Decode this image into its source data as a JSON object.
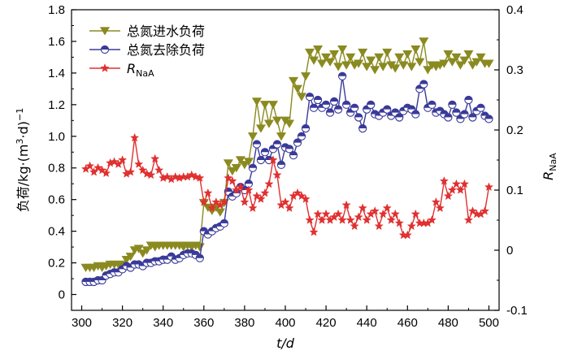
{
  "chart_data": {
    "type": "line",
    "xlabel": "t/d",
    "ylabel_left": "负荷/kg·(m3·d)−1",
    "ylabel_right": "RNaA",
    "xlim": [
      295,
      505
    ],
    "ylim_left": [
      -0.1,
      1.8
    ],
    "ylim_right": [
      -0.1,
      0.4
    ],
    "x_ticks": [
      300,
      320,
      340,
      360,
      380,
      400,
      420,
      440,
      460,
      480,
      500
    ],
    "y_ticks_left": [
      0,
      0.2,
      0.4,
      0.6,
      0.8,
      1.0,
      1.2,
      1.4,
      1.6,
      1.8
    ],
    "y_ticks_right": [
      -0.1,
      0,
      0.1,
      0.2,
      0.3,
      0.4
    ],
    "grid": false,
    "legend_position": "top-left",
    "series": [
      {
        "name": "总氮进水负荷",
        "axis": "left",
        "color": "#8a8a20",
        "marker": "triangle-down",
        "x": [
          302,
          304,
          306,
          308,
          310,
          312,
          314,
          316,
          318,
          320,
          322,
          324,
          326,
          328,
          330,
          332,
          334,
          336,
          338,
          340,
          342,
          344,
          346,
          348,
          350,
          352,
          354,
          356,
          358,
          360,
          362,
          364,
          366,
          368,
          370,
          372,
          374,
          376,
          378,
          380,
          382,
          384,
          386,
          388,
          390,
          392,
          394,
          396,
          398,
          400,
          402,
          404,
          406,
          408,
          410,
          412,
          414,
          416,
          418,
          420,
          422,
          424,
          426,
          428,
          430,
          432,
          434,
          436,
          438,
          440,
          442,
          444,
          446,
          448,
          450,
          452,
          454,
          456,
          458,
          460,
          462,
          464,
          466,
          468,
          470,
          472,
          474,
          476,
          478,
          480,
          482,
          484,
          486,
          488,
          490,
          492,
          494,
          496,
          498,
          500
        ],
        "values": [
          0.17,
          0.17,
          0.17,
          0.18,
          0.17,
          0.18,
          0.19,
          0.19,
          0.19,
          0.19,
          0.22,
          0.24,
          0.28,
          0.29,
          0.26,
          0.28,
          0.31,
          0.3,
          0.31,
          0.31,
          0.31,
          0.31,
          0.31,
          0.31,
          0.3,
          0.31,
          0.3,
          0.31,
          0.3,
          0.58,
          0.55,
          0.53,
          0.55,
          0.52,
          0.58,
          0.83,
          0.78,
          0.8,
          0.85,
          0.82,
          0.84,
          1.0,
          1.22,
          1.05,
          1.2,
          1.08,
          1.2,
          1.1,
          1.0,
          1.1,
          1.08,
          1.35,
          1.3,
          1.25,
          1.38,
          1.53,
          1.48,
          1.55,
          1.46,
          1.5,
          1.47,
          1.52,
          1.44,
          1.55,
          1.45,
          1.5,
          1.45,
          1.46,
          1.53,
          1.44,
          1.48,
          1.42,
          1.5,
          1.44,
          1.53,
          1.45,
          1.43,
          1.5,
          1.45,
          1.52,
          1.44,
          1.55,
          1.47,
          1.6,
          1.42,
          1.45,
          1.44,
          1.45,
          1.46,
          1.52,
          1.47,
          1.5,
          1.45,
          1.48,
          1.52,
          1.45,
          1.47,
          1.5,
          1.46,
          1.46
        ]
      },
      {
        "name": "总氮去除负荷",
        "axis": "left",
        "color": "#3a3a99",
        "marker": "circle-half",
        "x": [
          302,
          304,
          306,
          308,
          310,
          312,
          314,
          316,
          318,
          320,
          322,
          324,
          326,
          328,
          330,
          332,
          334,
          336,
          338,
          340,
          342,
          344,
          346,
          348,
          350,
          352,
          354,
          356,
          358,
          360,
          362,
          364,
          366,
          368,
          370,
          372,
          374,
          376,
          378,
          380,
          382,
          384,
          386,
          388,
          390,
          392,
          394,
          396,
          398,
          400,
          402,
          404,
          406,
          408,
          410,
          412,
          414,
          416,
          418,
          420,
          422,
          424,
          426,
          428,
          430,
          432,
          434,
          436,
          438,
          440,
          442,
          444,
          446,
          448,
          450,
          452,
          454,
          456,
          458,
          460,
          462,
          464,
          466,
          468,
          470,
          472,
          474,
          476,
          478,
          480,
          482,
          484,
          486,
          488,
          490,
          492,
          494,
          496,
          498,
          500
        ],
        "values": [
          0.08,
          0.08,
          0.08,
          0.09,
          0.09,
          0.12,
          0.13,
          0.14,
          0.14,
          0.16,
          0.18,
          0.17,
          0.19,
          0.19,
          0.18,
          0.2,
          0.2,
          0.21,
          0.21,
          0.22,
          0.22,
          0.24,
          0.22,
          0.23,
          0.25,
          0.26,
          0.26,
          0.25,
          0.23,
          0.4,
          0.38,
          0.4,
          0.42,
          0.43,
          0.45,
          0.65,
          0.62,
          0.64,
          0.68,
          0.66,
          0.7,
          0.8,
          0.95,
          0.85,
          0.9,
          0.85,
          0.92,
          0.95,
          0.82,
          0.93,
          0.92,
          0.88,
          0.96,
          1.0,
          1.05,
          1.25,
          1.18,
          1.23,
          1.18,
          1.2,
          1.15,
          1.22,
          1.17,
          1.38,
          1.2,
          1.15,
          1.18,
          1.12,
          1.05,
          1.17,
          1.2,
          1.14,
          1.13,
          1.15,
          1.17,
          1.13,
          1.15,
          1.12,
          1.16,
          1.18,
          1.17,
          1.14,
          1.3,
          1.33,
          1.18,
          1.2,
          1.15,
          1.16,
          1.14,
          1.12,
          1.2,
          1.15,
          1.11,
          1.14,
          1.23,
          1.12,
          1.16,
          1.18,
          1.13,
          1.11
        ]
      },
      {
        "name": "RNaA",
        "axis": "right",
        "color": "#e03030",
        "marker": "star",
        "x": [
          302,
          304,
          306,
          308,
          310,
          312,
          314,
          316,
          318,
          320,
          322,
          324,
          326,
          328,
          330,
          332,
          334,
          336,
          338,
          340,
          342,
          344,
          346,
          348,
          350,
          352,
          354,
          356,
          358,
          360,
          362,
          364,
          366,
          368,
          370,
          372,
          374,
          376,
          378,
          380,
          382,
          384,
          386,
          388,
          390,
          392,
          394,
          396,
          398,
          400,
          402,
          404,
          406,
          408,
          410,
          412,
          414,
          416,
          418,
          420,
          422,
          424,
          426,
          428,
          430,
          432,
          434,
          436,
          438,
          440,
          442,
          444,
          446,
          448,
          450,
          452,
          454,
          456,
          458,
          460,
          462,
          464,
          466,
          468,
          470,
          472,
          474,
          476,
          478,
          480,
          482,
          484,
          486,
          488,
          490,
          492,
          494,
          496,
          498,
          500
        ],
        "values": [
          0.135,
          0.14,
          0.13,
          0.137,
          0.133,
          0.128,
          0.145,
          0.147,
          0.143,
          0.15,
          0.127,
          0.13,
          0.187,
          0.143,
          0.133,
          0.127,
          0.125,
          0.152,
          0.133,
          0.12,
          0.122,
          0.118,
          0.122,
          0.12,
          0.122,
          0.122,
          0.125,
          0.122,
          0.12,
          0.08,
          0.095,
          0.07,
          0.08,
          0.075,
          0.08,
          0.12,
          0.115,
          0.1,
          0.105,
          0.08,
          0.1,
          0.07,
          0.09,
          0.085,
          0.095,
          0.11,
          0.15,
          0.125,
          0.075,
          0.08,
          0.07,
          0.09,
          0.095,
          0.09,
          0.085,
          0.05,
          0.03,
          0.06,
          0.05,
          0.06,
          0.05,
          0.055,
          0.06,
          0.05,
          0.075,
          0.05,
          0.04,
          0.055,
          0.07,
          0.05,
          0.06,
          0.065,
          0.04,
          0.06,
          0.07,
          0.05,
          0.06,
          0.045,
          0.025,
          0.025,
          0.04,
          0.06,
          0.045,
          0.045,
          0.045,
          0.05,
          0.08,
          0.07,
          0.115,
          0.09,
          0.1,
          0.11,
          0.1,
          0.11,
          0.05,
          0.065,
          0.06,
          0.06,
          0.065,
          0.105
        ]
      }
    ]
  }
}
